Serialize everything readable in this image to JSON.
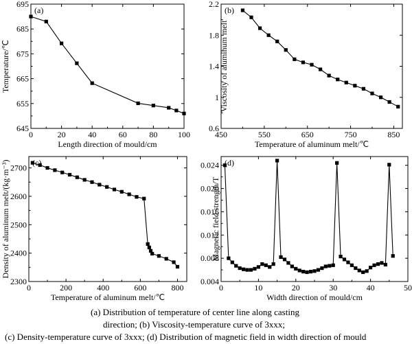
{
  "figure": {
    "caption_lines": [
      "(a)  Distribution  of  temperature  of  center  line  along  casting",
      "direction; (b) Viscosity-temperature curve of 3xxx;",
      "(c) Density-temperature curve of 3xxx; (d) Distribution of magnetic field in width direction of mould"
    ]
  },
  "chart_data": [
    {
      "type": "line",
      "panel_label": "(a)",
      "xlabel": "Length direction of mould/cm",
      "ylabel": "Temperature/℃",
      "xlim": [
        0,
        100
      ],
      "ylim": [
        645,
        695
      ],
      "xticks": [
        0,
        20,
        40,
        60,
        80,
        100
      ],
      "yticks": [
        645,
        655,
        665,
        675,
        685,
        695
      ],
      "marker": "square",
      "series": [
        {
          "x": [
            0,
            10,
            20,
            30,
            40,
            70,
            80,
            90,
            95,
            100
          ],
          "y": [
            690,
            688,
            679.2,
            671.2,
            663.2,
            655.1,
            654.2,
            653.3,
            652.2,
            651
          ]
        }
      ]
    },
    {
      "type": "line",
      "panel_label": "(b)",
      "xlabel": "Temperature of aluminum melt/℃",
      "ylabel": "Viscosity of aluminum melt",
      "xlim": [
        450,
        870
      ],
      "ylim": [
        0.6,
        2.2
      ],
      "xticks": [
        450,
        550,
        650,
        750,
        850
      ],
      "yticks": [
        0.6,
        1.0,
        1.4,
        1.8,
        2.2
      ],
      "marker": "square",
      "series": [
        {
          "x": [
            500,
            520,
            540,
            560,
            580,
            600,
            620,
            640,
            660,
            680,
            700,
            720,
            740,
            760,
            780,
            800,
            820,
            840,
            860
          ],
          "y": [
            2.12,
            2.03,
            1.89,
            1.8,
            1.72,
            1.61,
            1.49,
            1.45,
            1.42,
            1.36,
            1.28,
            1.23,
            1.19,
            1.15,
            1.11,
            1.05,
            1.0,
            0.94,
            0.88
          ]
        }
      ]
    },
    {
      "type": "line",
      "panel_label": "(c)",
      "xlabel": "Temperature of aluminum melt/℃",
      "ylabel": "Density of aluminum melt/(kg·m⁻³)",
      "xlim": [
        0,
        850
      ],
      "ylim": [
        2300,
        2740
      ],
      "xticks": [
        0,
        200,
        400,
        600,
        800
      ],
      "yticks": [
        2300,
        2400,
        2500,
        2600,
        2700
      ],
      "marker": "square",
      "series": [
        {
          "x": [
            20,
            60,
            100,
            140,
            180,
            220,
            260,
            300,
            340,
            380,
            420,
            460,
            500,
            540,
            580,
            620,
            640,
            648,
            656,
            664,
            700,
            740,
            780,
            800
          ],
          "y": [
            2718,
            2710,
            2700,
            2692,
            2684,
            2676,
            2667,
            2658,
            2650,
            2641,
            2633,
            2624,
            2616,
            2607,
            2598,
            2592,
            2432,
            2420,
            2408,
            2398,
            2390,
            2380,
            2368,
            2352
          ]
        }
      ]
    },
    {
      "type": "line",
      "panel_label": "(d)",
      "xlabel": "Width direction of mould/cm",
      "ylabel": "Magnetic field strength/T",
      "xlim": [
        0,
        50
      ],
      "ylim": [
        0.004,
        0.0255
      ],
      "xticks": [
        0,
        10,
        20,
        30,
        40,
        50
      ],
      "yticks": [
        0.004,
        0.008,
        0.012,
        0.016,
        0.02,
        0.024
      ],
      "yticklabels": [
        "0.004",
        "0.008",
        "0.012",
        "0.016",
        "0.020",
        "0.024"
      ],
      "marker": "square",
      "series": [
        {
          "x": [
            1,
            2,
            3,
            4,
            5,
            6,
            7,
            8,
            9,
            10,
            11,
            12,
            13,
            14,
            15,
            16,
            17,
            18,
            19,
            20,
            21,
            22,
            23,
            24,
            25,
            26,
            27,
            28,
            29,
            30,
            31,
            32,
            33,
            34,
            35,
            36,
            37,
            38,
            39,
            40,
            41,
            42,
            43,
            44,
            45,
            46
          ],
          "y": [
            0.024,
            0.008,
            0.0073,
            0.0067,
            0.0063,
            0.0061,
            0.006,
            0.006,
            0.0062,
            0.0065,
            0.007,
            0.0068,
            0.0065,
            0.007,
            0.0248,
            0.0082,
            0.0078,
            0.0072,
            0.0066,
            0.0062,
            0.0059,
            0.0057,
            0.0056,
            0.0057,
            0.0058,
            0.006,
            0.0063,
            0.0066,
            0.0067,
            0.0068,
            0.0244,
            0.0083,
            0.0078,
            0.0073,
            0.0068,
            0.0063,
            0.0059,
            0.0056,
            0.0058,
            0.0064,
            0.0068,
            0.007,
            0.0072,
            0.0069,
            0.0241,
            0.0084
          ]
        }
      ]
    }
  ]
}
